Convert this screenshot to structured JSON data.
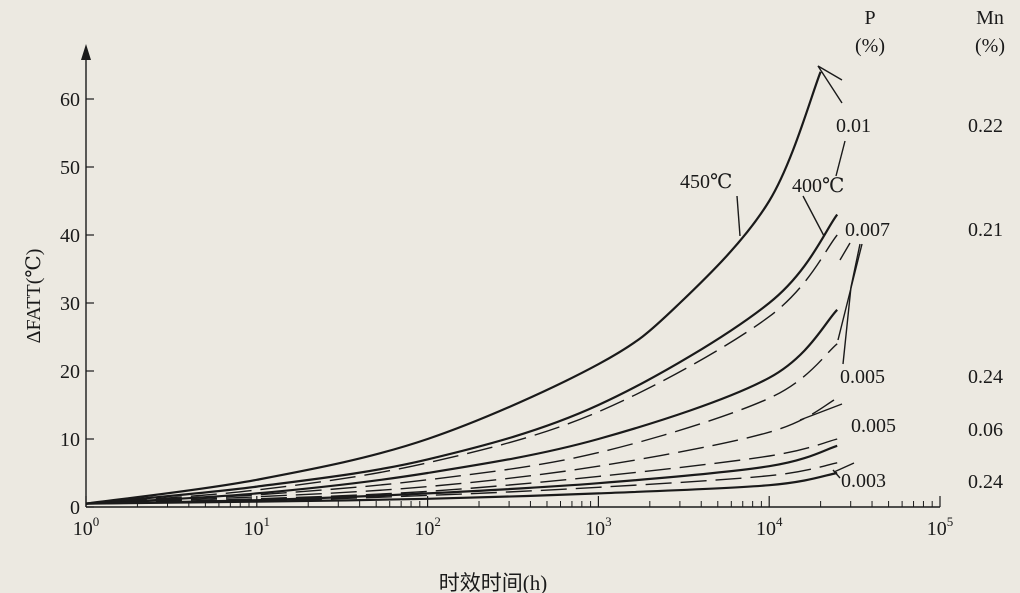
{
  "chart_data": {
    "type": "line",
    "xlabel": "时效时间(h)",
    "ylabel": "ΔFATT(℃)",
    "x_scale": "log",
    "xlim": [
      1,
      100000
    ],
    "ylim": [
      0,
      65
    ],
    "x_ticks": [
      {
        "value": 1,
        "base": "10",
        "exp": "0"
      },
      {
        "value": 10,
        "base": "10",
        "exp": "1"
      },
      {
        "value": 100,
        "base": "10",
        "exp": "2"
      },
      {
        "value": 1000,
        "base": "10",
        "exp": "3"
      },
      {
        "value": 10000,
        "base": "10",
        "exp": "4"
      },
      {
        "value": 100000,
        "base": "10",
        "exp": "5"
      }
    ],
    "y_ticks": [
      0,
      10,
      20,
      30,
      40,
      50,
      60
    ],
    "grid": false,
    "column_headers": {
      "p": {
        "line1": "P",
        "line2": "(%)"
      },
      "mn": {
        "line1": "Mn",
        "line2": "(%)"
      }
    },
    "temperature_labels": [
      "450℃",
      "400℃"
    ],
    "series": [
      {
        "style": "solid",
        "x": [
          1,
          10,
          100,
          1000,
          3000,
          10000,
          20000
        ],
        "y": [
          0.5,
          4,
          10,
          21,
          30,
          45,
          64
        ]
      },
      {
        "style": "solid",
        "x": [
          1,
          10,
          100,
          1000,
          10000,
          25000
        ],
        "y": [
          0.5,
          3,
          7,
          15,
          30,
          43
        ]
      },
      {
        "style": "dashed",
        "x": [
          1,
          10,
          100,
          1000,
          10000,
          25000
        ],
        "y": [
          0.5,
          2.5,
          6.5,
          14,
          28,
          40
        ]
      },
      {
        "style": "solid",
        "x": [
          1,
          10,
          100,
          1000,
          10000,
          25000
        ],
        "y": [
          0.5,
          2,
          5,
          10,
          19,
          29
        ]
      },
      {
        "style": "dashed",
        "x": [
          1,
          10,
          100,
          1000,
          10000,
          25000
        ],
        "y": [
          0.5,
          1.8,
          4,
          8,
          16,
          24
        ]
      },
      {
        "style": "dashed",
        "x": [
          1,
          10,
          100,
          1000,
          10000,
          25000
        ],
        "y": [
          0.5,
          1.5,
          3,
          6,
          11,
          16
        ]
      },
      {
        "style": "dashed",
        "x": [
          1,
          10,
          100,
          1000,
          10000,
          25000
        ],
        "y": [
          0.5,
          1.2,
          2.3,
          4.5,
          7.5,
          10
        ]
      },
      {
        "style": "solid",
        "x": [
          1,
          10,
          100,
          1000,
          10000,
          25000
        ],
        "y": [
          0.5,
          1,
          2,
          3.5,
          6,
          9
        ]
      },
      {
        "style": "dashed",
        "x": [
          1,
          10,
          100,
          1000,
          10000,
          25000
        ],
        "y": [
          0.5,
          0.9,
          1.7,
          2.9,
          4.6,
          6.5
        ]
      },
      {
        "style": "solid",
        "x": [
          1,
          10,
          100,
          1000,
          10000,
          25000
        ],
        "y": [
          0.5,
          0.8,
          1.2,
          2,
          3.2,
          5
        ]
      }
    ],
    "curve_labels": [
      {
        "p": "0.01",
        "mn": "0.22"
      },
      {
        "p": "0.007",
        "mn": "0.21"
      },
      {
        "p": "0.005",
        "mn": "0.24"
      },
      {
        "p": "0.005",
        "mn": "0.06"
      },
      {
        "p": "0.003",
        "mn": "0.24"
      }
    ]
  }
}
